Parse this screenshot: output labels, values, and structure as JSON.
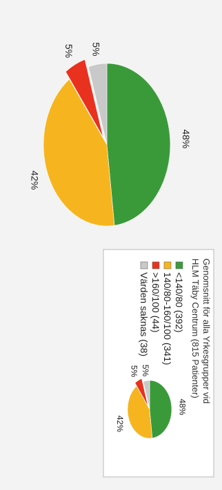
{
  "chart_data": {
    "type": "pie",
    "categories": [
      "<140/80 (392)",
      "140/80-160/100 (341)",
      ">160/100 (44)",
      "Värden saknas (38)"
    ],
    "values": [
      392,
      341,
      44,
      38
    ],
    "percent_labels": [
      "48%",
      "42%",
      "5%",
      "5%"
    ],
    "colors": [
      "#3a9a3a",
      "#f6b51f",
      "#e8321f",
      "#c9c9c9"
    ],
    "legend_title_line1": "Genomsnitt för alla Yrkesgrupper vid",
    "legend_title_line2": "HLM Täby Centrum (815 Patienter)",
    "legend": [
      {
        "label": "<140/80 (392)",
        "color": "#3a9a3a"
      },
      {
        "label": "140/80-160/100 (341)",
        "color": "#f6b51f"
      },
      {
        "label": ">160/100 (44)",
        "color": "#e8321f"
      },
      {
        "label": "Värden saknas (38)",
        "color": "#c9c9c9"
      }
    ],
    "exploded_slice": ">160/100 (44)",
    "orientation": "rotated 90 degrees clockwise"
  }
}
